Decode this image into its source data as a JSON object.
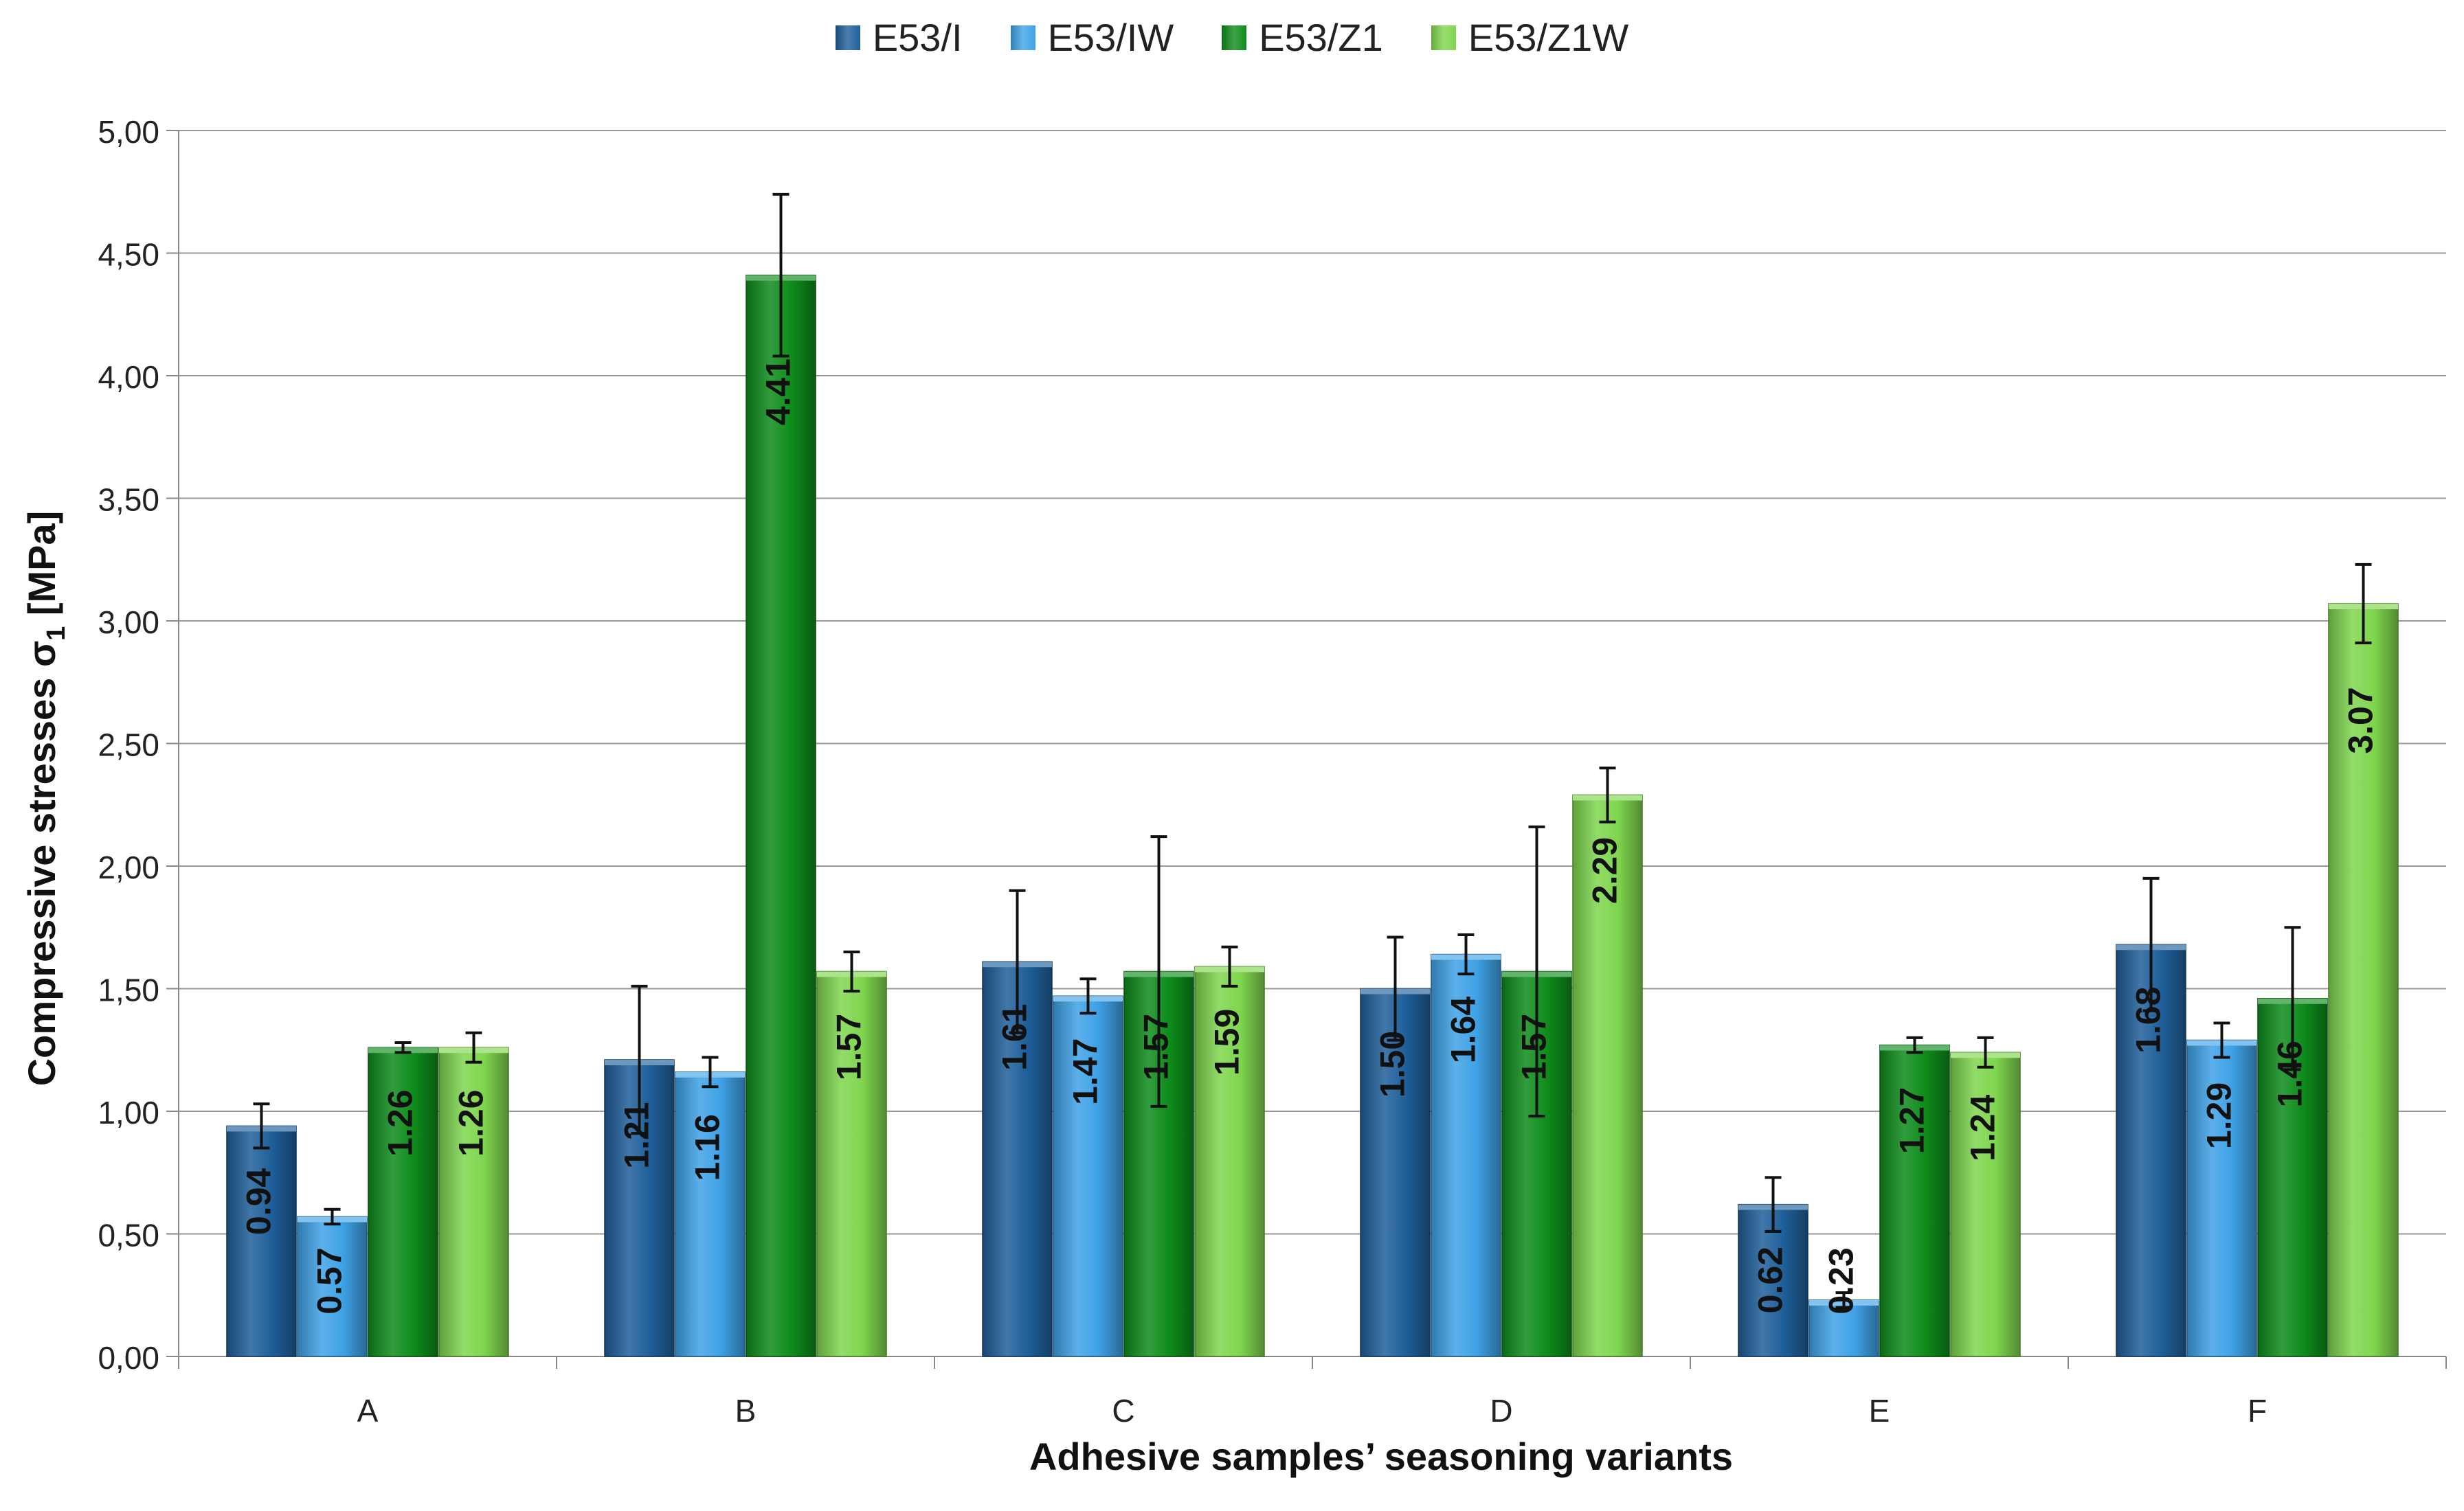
{
  "chart_data": {
    "type": "bar",
    "title": "",
    "xlabel": "Adhesive samples’ seasoning variants",
    "ylabel": "Compressive stresses σ",
    "ylabel_subscript": "1",
    "ylabel_unit": " [MPa]",
    "ylim": [
      0,
      5
    ],
    "yticks": [
      "0,00",
      "0,50",
      "1,00",
      "1,50",
      "2,00",
      "2,50",
      "3,00",
      "3,50",
      "4,00",
      "4,50",
      "5,00"
    ],
    "categories": [
      "A",
      "B",
      "C",
      "D",
      "E",
      "F"
    ],
    "series": [
      {
        "name": "E53/I",
        "color": "#1f5f9a",
        "values": [
          0.94,
          1.21,
          1.61,
          1.5,
          0.62,
          1.68
        ],
        "labels": [
          "0.94",
          "1.21",
          "1.61",
          "1.50",
          "0.62",
          "1.68"
        ],
        "errors": [
          0.09,
          0.3,
          0.29,
          0.21,
          0.11,
          0.27
        ]
      },
      {
        "name": "E53/IW",
        "color": "#3fa2e6",
        "values": [
          0.57,
          1.16,
          1.47,
          1.64,
          0.23,
          1.29
        ],
        "labels": [
          "0.57",
          "1.16",
          "1.47",
          "1.64",
          "0.23",
          "1.29"
        ],
        "errors": [
          0.03,
          0.06,
          0.07,
          0.08,
          0.03,
          0.07
        ]
      },
      {
        "name": "E53/Z1",
        "color": "#0e8c1b",
        "values": [
          1.26,
          4.41,
          1.57,
          1.57,
          1.27,
          1.46
        ],
        "labels": [
          "1.26",
          "4.41",
          "1.57",
          "1.57",
          "1.27",
          "1.46"
        ],
        "errors": [
          0.02,
          0.33,
          0.55,
          0.59,
          0.03,
          0.29
        ]
      },
      {
        "name": "E53/Z1W",
        "color": "#7fd64e",
        "values": [
          1.26,
          1.57,
          1.59,
          2.29,
          1.24,
          3.07
        ],
        "labels": [
          "1.26",
          "1.57",
          "1.59",
          "2.29",
          "1.24",
          "3.07"
        ],
        "errors": [
          0.06,
          0.08,
          0.08,
          0.11,
          0.06,
          0.16
        ]
      }
    ],
    "grid": true,
    "legend_position": "top-center"
  }
}
